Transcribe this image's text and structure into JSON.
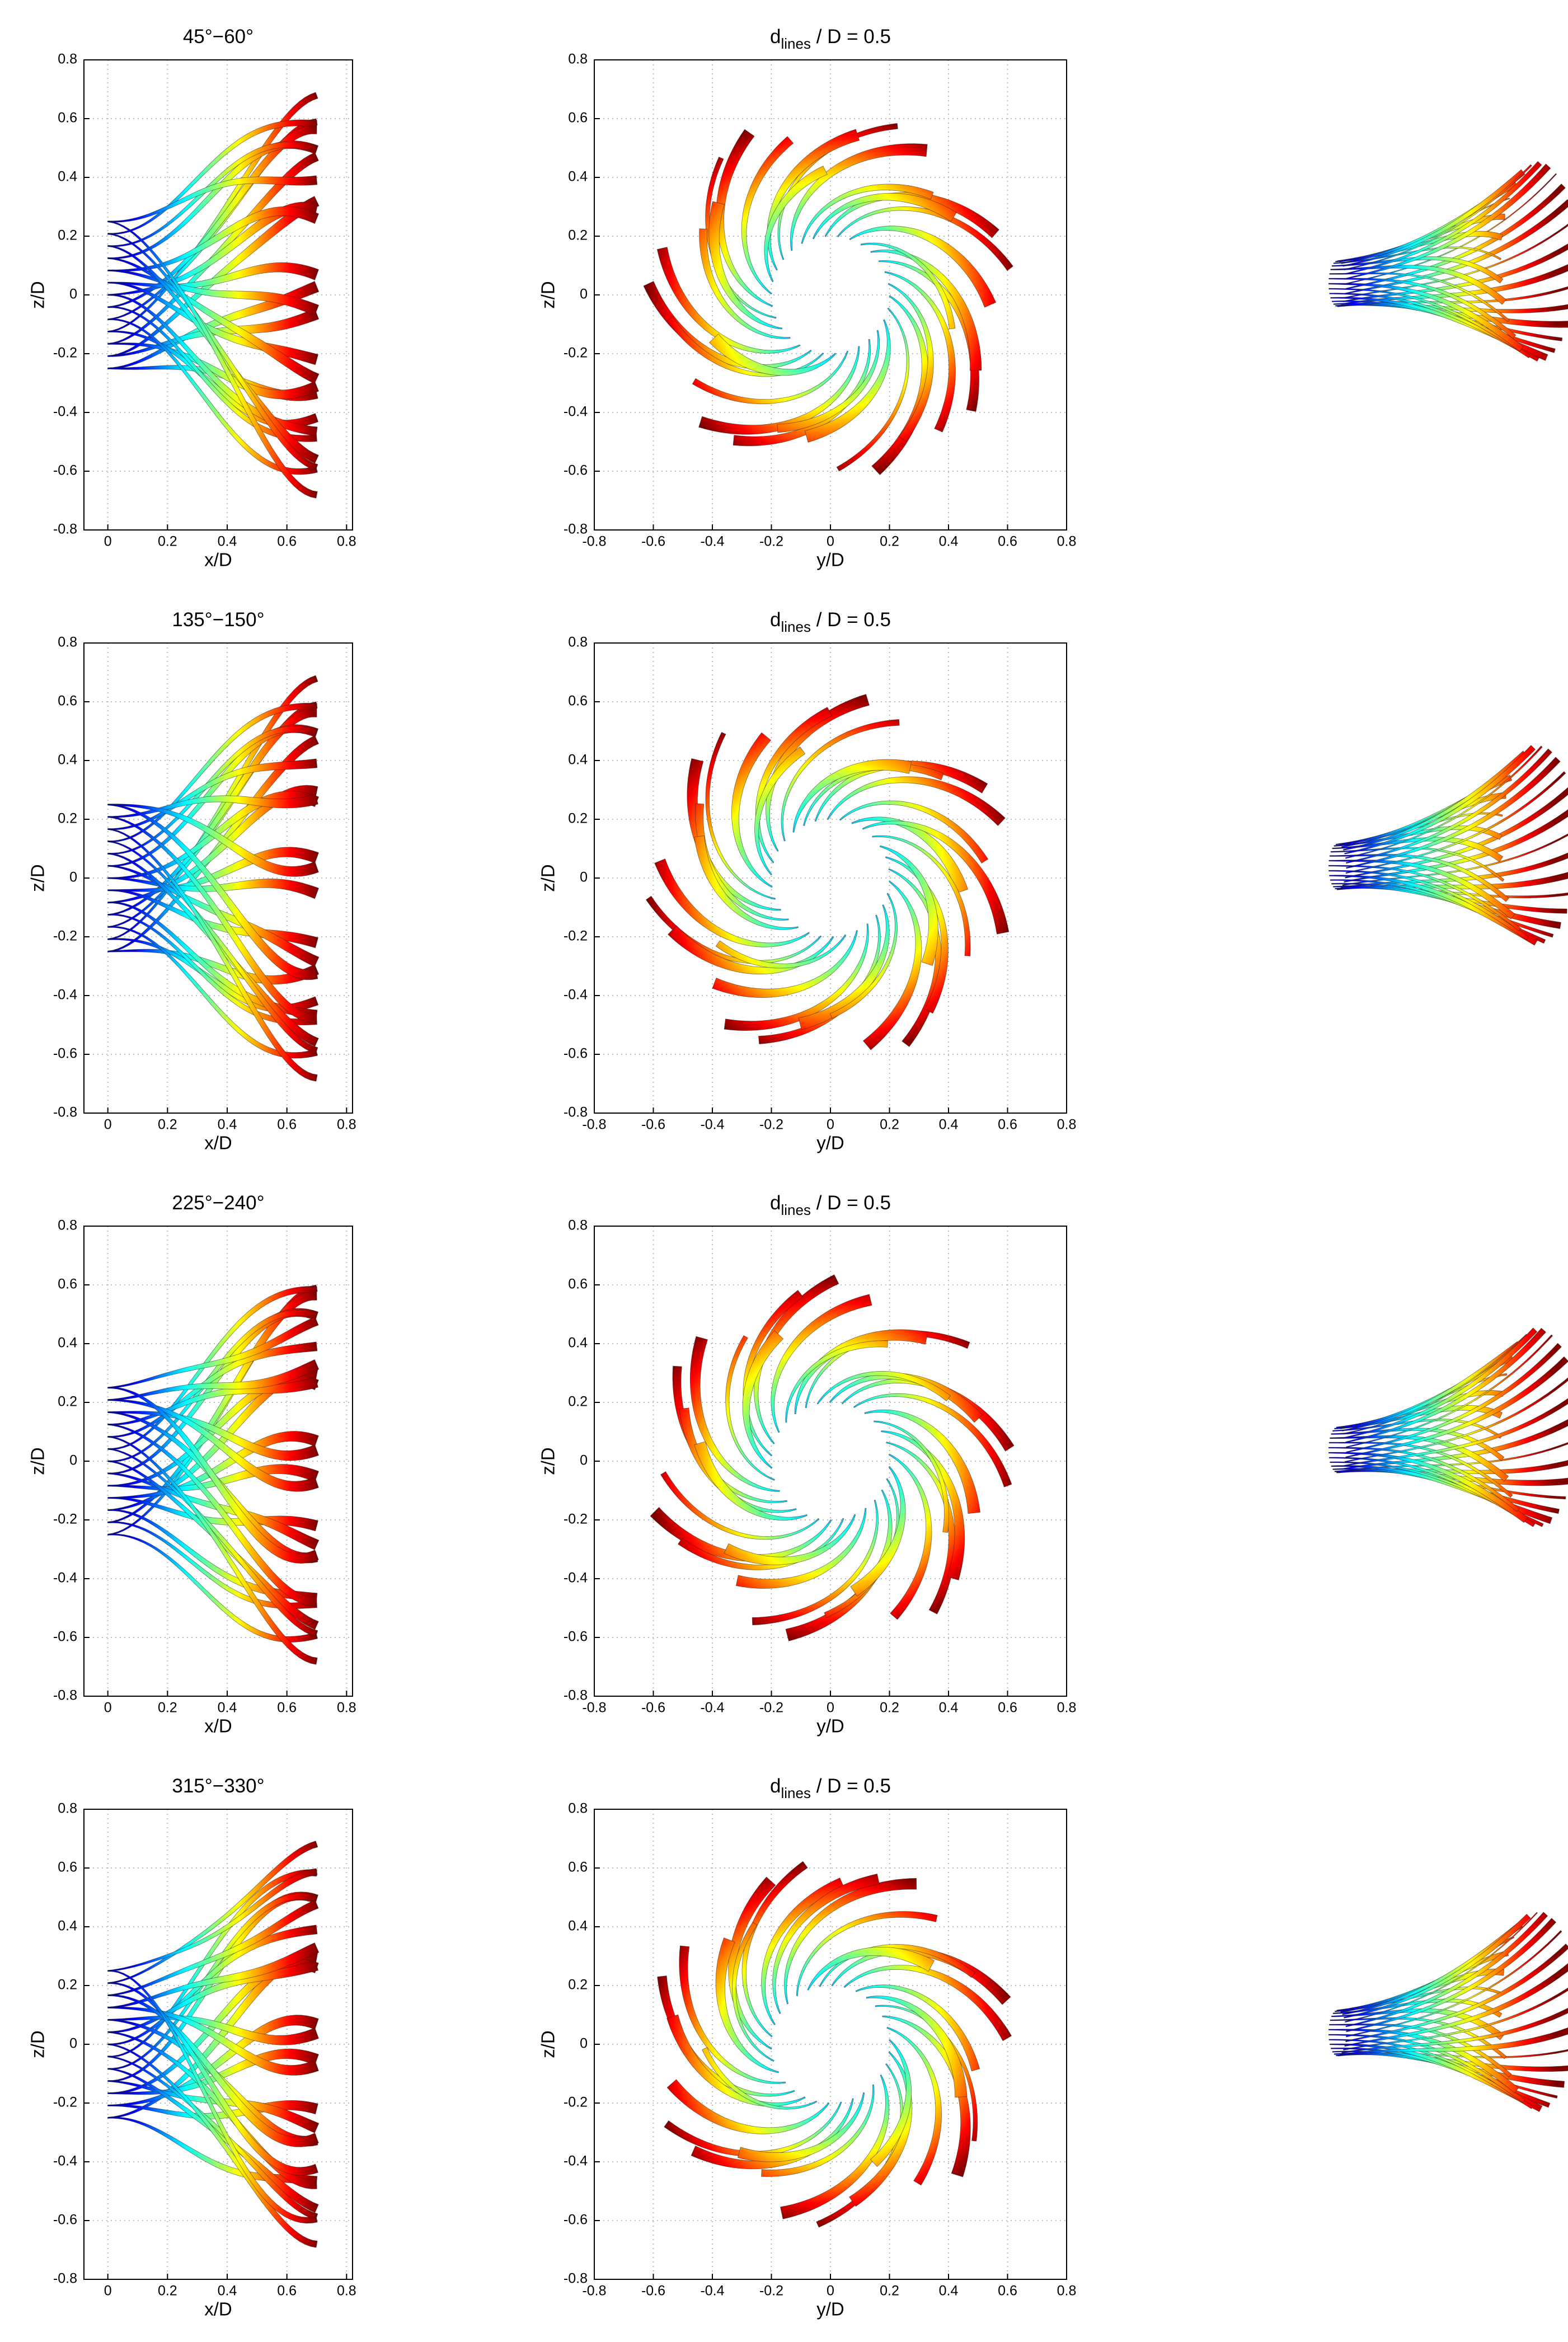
{
  "chart_data": [
    {
      "type": "ribbon",
      "title": "45°−60°",
      "xlabel": "x/D",
      "ylabel": "z/D",
      "xlim": [
        -0.08,
        0.82
      ],
      "ylim": [
        -0.8,
        0.8
      ],
      "xticks": [
        0,
        0.2,
        0.4,
        0.6,
        0.8
      ],
      "yticks": [
        -0.8,
        -0.6,
        -0.4,
        -0.2,
        0,
        0.2,
        0.4,
        0.6,
        0.8
      ],
      "grid": true
    },
    {
      "type": "swirl",
      "title_parts": [
        "d",
        "lines",
        " / D = 0.5"
      ],
      "xlabel": "y/D",
      "ylabel": "z/D",
      "xlim": [
        -0.8,
        0.8
      ],
      "ylim": [
        -0.8,
        0.8
      ],
      "xticks": [
        -0.8,
        -0.6,
        -0.4,
        -0.2,
        0,
        0.2,
        0.4,
        0.6,
        0.8
      ],
      "yticks": [
        -0.8,
        -0.6,
        -0.4,
        -0.2,
        0,
        0.2,
        0.4,
        0.6,
        0.8
      ],
      "grid": true
    },
    {
      "type": "ribbon",
      "title": "135°−150°",
      "xlabel": "x/D",
      "ylabel": "z/D",
      "xlim": [
        -0.08,
        0.82
      ],
      "ylim": [
        -0.8,
        0.8
      ],
      "xticks": [
        0,
        0.2,
        0.4,
        0.6,
        0.8
      ],
      "yticks": [
        -0.8,
        -0.6,
        -0.4,
        -0.2,
        0,
        0.2,
        0.4,
        0.6,
        0.8
      ],
      "grid": true
    },
    {
      "type": "swirl",
      "title_parts": [
        "d",
        "lines",
        " / D = 0.5"
      ],
      "xlabel": "y/D",
      "ylabel": "z/D",
      "xlim": [
        -0.8,
        0.8
      ],
      "ylim": [
        -0.8,
        0.8
      ],
      "xticks": [
        -0.8,
        -0.6,
        -0.4,
        -0.2,
        0,
        0.2,
        0.4,
        0.6,
        0.8
      ],
      "yticks": [
        -0.8,
        -0.6,
        -0.4,
        -0.2,
        0,
        0.2,
        0.4,
        0.6,
        0.8
      ],
      "grid": true
    },
    {
      "type": "ribbon",
      "title": "225°−240°",
      "xlabel": "x/D",
      "ylabel": "z/D",
      "xlim": [
        -0.08,
        0.82
      ],
      "ylim": [
        -0.8,
        0.8
      ],
      "xticks": [
        0,
        0.2,
        0.4,
        0.6,
        0.8
      ],
      "yticks": [
        -0.8,
        -0.6,
        -0.4,
        -0.2,
        0,
        0.2,
        0.4,
        0.6,
        0.8
      ],
      "grid": true
    },
    {
      "type": "swirl",
      "title_parts": [
        "d",
        "lines",
        " / D = 0.5"
      ],
      "xlabel": "y/D",
      "ylabel": "z/D",
      "xlim": [
        -0.8,
        0.8
      ],
      "ylim": [
        -0.8,
        0.8
      ],
      "xticks": [
        -0.8,
        -0.6,
        -0.4,
        -0.2,
        0,
        0.2,
        0.4,
        0.6,
        0.8
      ],
      "yticks": [
        -0.8,
        -0.6,
        -0.4,
        -0.2,
        0,
        0.2,
        0.4,
        0.6,
        0.8
      ],
      "grid": true
    },
    {
      "type": "ribbon",
      "title": "315°−330°",
      "xlabel": "x/D",
      "ylabel": "z/D",
      "xlim": [
        -0.08,
        0.82
      ],
      "ylim": [
        -0.8,
        0.8
      ],
      "xticks": [
        0,
        0.2,
        0.4,
        0.6,
        0.8
      ],
      "yticks": [
        -0.8,
        -0.6,
        -0.4,
        -0.2,
        0,
        0.2,
        0.4,
        0.6,
        0.8
      ],
      "grid": true
    },
    {
      "type": "swirl",
      "title_parts": [
        "d",
        "lines",
        " / D = 0.5"
      ],
      "xlabel": "y/D",
      "ylabel": "z/D",
      "xlim": [
        -0.8,
        0.8
      ],
      "ylim": [
        -0.8,
        0.8
      ],
      "xticks": [
        -0.8,
        -0.6,
        -0.4,
        -0.2,
        0,
        0.2,
        0.4,
        0.6,
        0.8
      ],
      "yticks": [
        -0.8,
        -0.6,
        -0.4,
        -0.2,
        0,
        0.2,
        0.4,
        0.6,
        0.8
      ],
      "grid": true
    }
  ]
}
